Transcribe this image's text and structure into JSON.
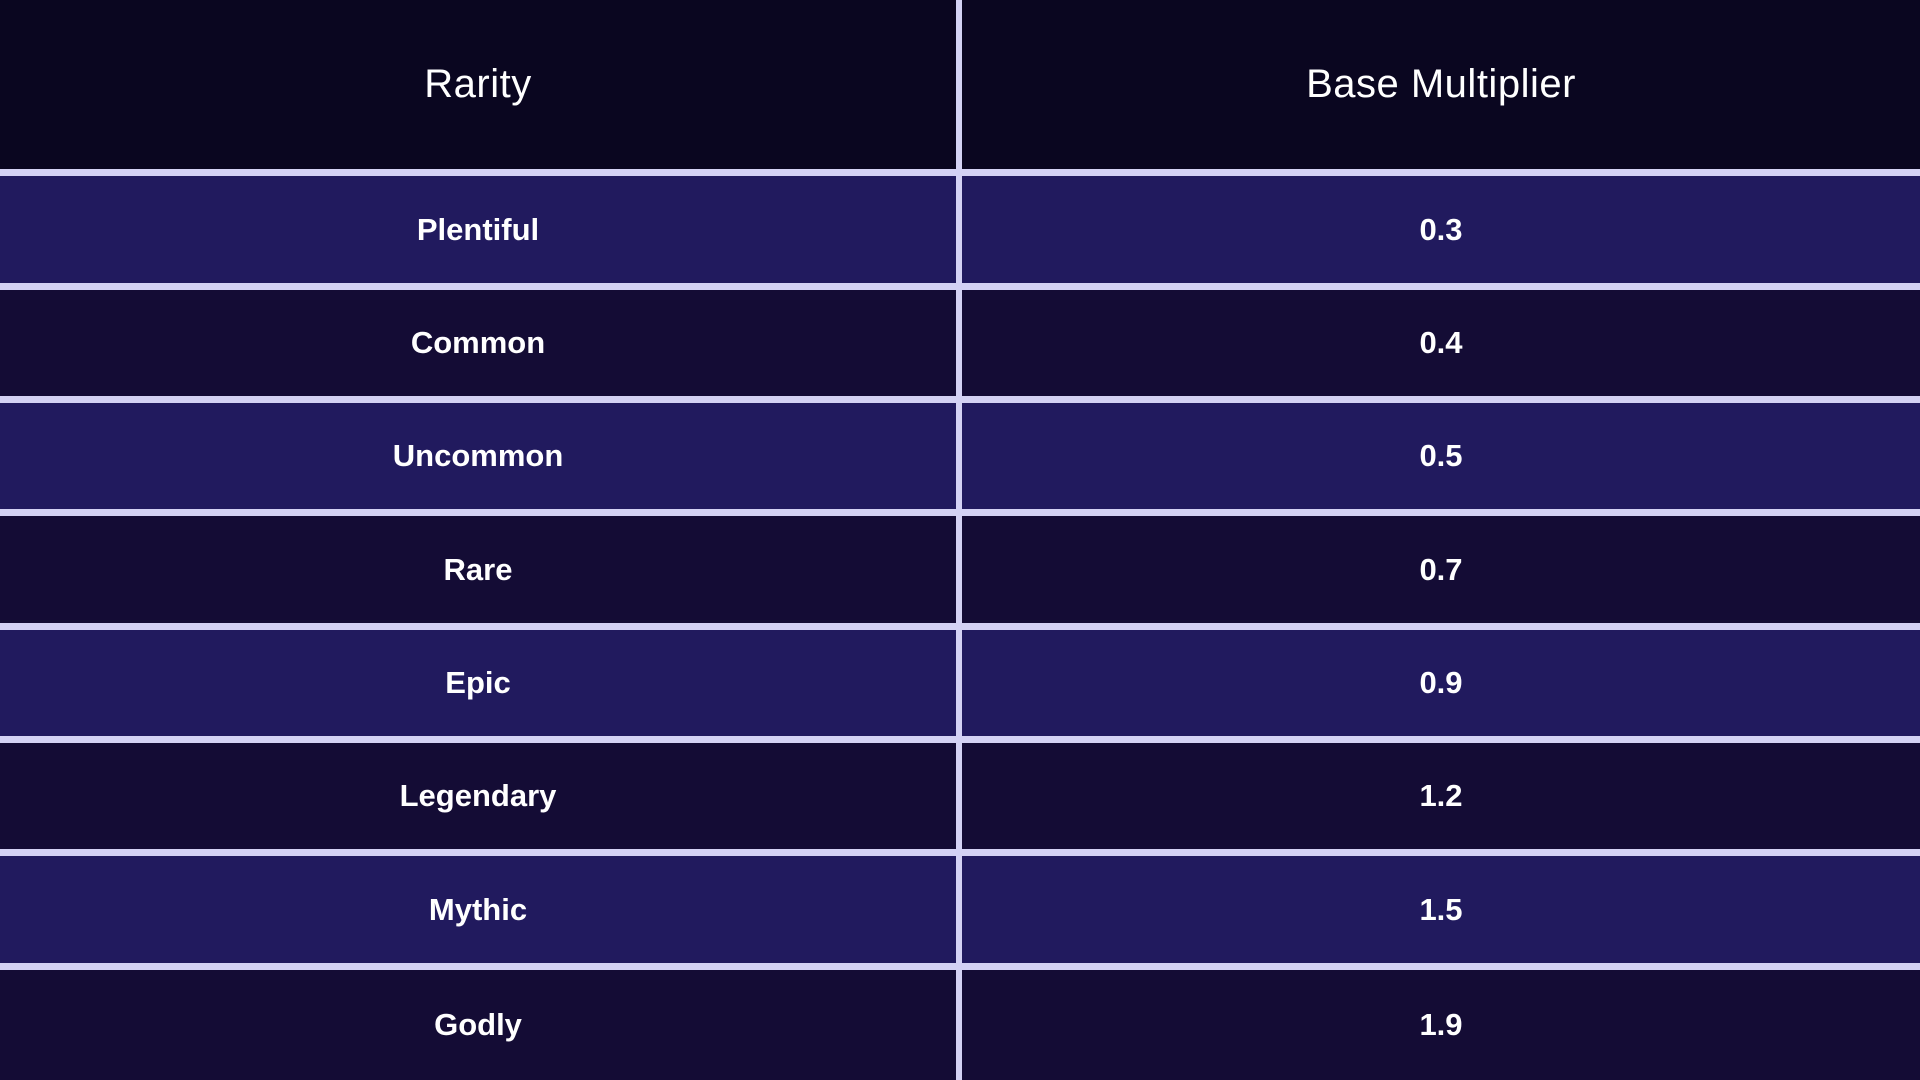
{
  "table": {
    "headers": {
      "rarity": "Rarity",
      "multiplier": "Base Multiplier"
    },
    "rows": [
      {
        "rarity": "Plentiful",
        "multiplier": "0.3"
      },
      {
        "rarity": "Common",
        "multiplier": "0.4"
      },
      {
        "rarity": "Uncommon",
        "multiplier": "0.5"
      },
      {
        "rarity": "Rare",
        "multiplier": "0.7"
      },
      {
        "rarity": "Epic",
        "multiplier": "0.9"
      },
      {
        "rarity": "Legendary",
        "multiplier": "1.2"
      },
      {
        "rarity": "Mythic",
        "multiplier": "1.5"
      },
      {
        "rarity": "Godly",
        "multiplier": "1.9"
      }
    ]
  },
  "colors": {
    "header_background": "#0a0620",
    "row_odd_background": "#211a5e",
    "row_even_background": "#140c35",
    "grid_lines": "#d4d2f4",
    "text": "#ffffff"
  }
}
